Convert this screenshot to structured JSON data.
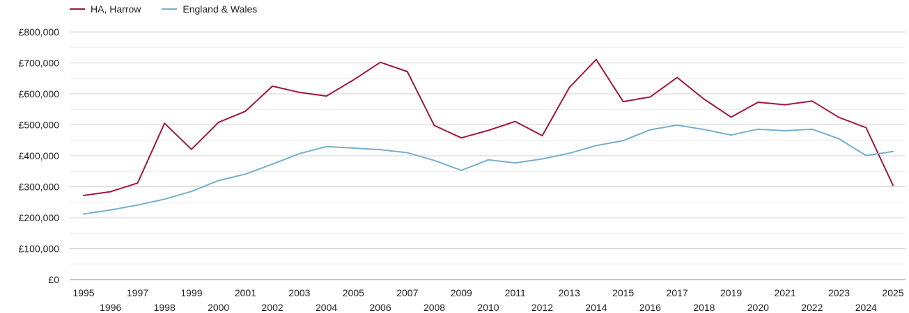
{
  "chart_data": {
    "type": "line",
    "title": "",
    "xlabel": "",
    "ylabel": "",
    "x": [
      1995,
      1996,
      1997,
      1998,
      1999,
      2000,
      2001,
      2002,
      2003,
      2004,
      2005,
      2006,
      2007,
      2008,
      2009,
      2010,
      2011,
      2012,
      2013,
      2014,
      2015,
      2016,
      2017,
      2018,
      2019,
      2020,
      2021,
      2022,
      2023,
      2024,
      2025
    ],
    "ylim": [
      0,
      800000
    ],
    "yticks": [
      0,
      100000,
      200000,
      300000,
      400000,
      500000,
      600000,
      700000,
      800000
    ],
    "ytick_labels": [
      "£0",
      "£100,000",
      "£200,000",
      "£300,000",
      "£400,000",
      "£500,000",
      "£600,000",
      "£700,000",
      "£800,000"
    ],
    "grid": true,
    "legend_position": "top-left",
    "series": [
      {
        "name": "HA, Harrow",
        "color": "#a0173c",
        "values": [
          272000,
          284000,
          312000,
          505000,
          421000,
          508000,
          544000,
          625000,
          605000,
          593000,
          645000,
          702000,
          672000,
          498000,
          458000,
          482000,
          511000,
          465000,
          620000,
          711000,
          575000,
          590000,
          653000,
          583000,
          525000,
          573000,
          565000,
          577000,
          524000,
          491000,
          305000
        ]
      },
      {
        "name": "England & Wales",
        "color": "#76afcc",
        "values": [
          212000,
          225000,
          241000,
          260000,
          285000,
          320000,
          341000,
          373000,
          407000,
          430000,
          425000,
          420000,
          410000,
          385000,
          353000,
          387000,
          377000,
          390000,
          408000,
          433000,
          449000,
          484000,
          499000,
          485000,
          467000,
          486000,
          481000,
          486000,
          455000,
          401000,
          414000
        ]
      }
    ]
  }
}
